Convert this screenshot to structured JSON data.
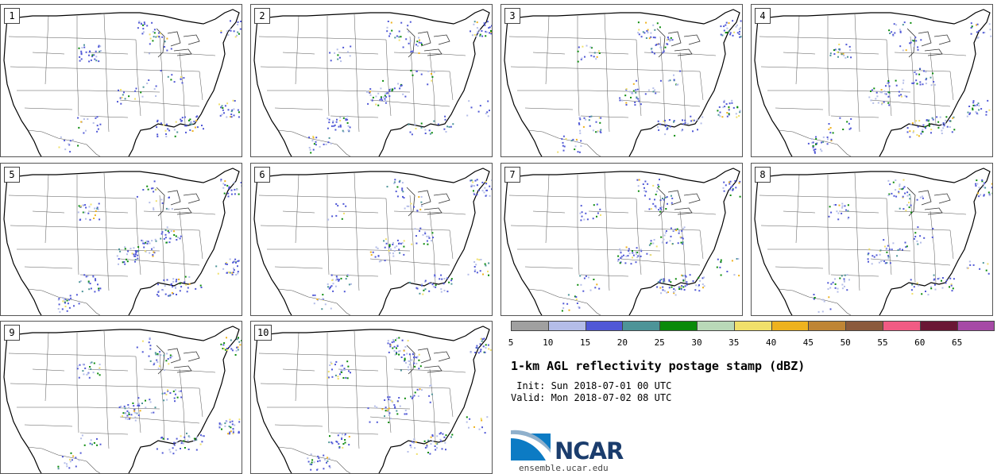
{
  "panels": [
    {
      "id": 1,
      "label": "1"
    },
    {
      "id": 2,
      "label": "2"
    },
    {
      "id": 3,
      "label": "3"
    },
    {
      "id": 4,
      "label": "4"
    },
    {
      "id": 5,
      "label": "5"
    },
    {
      "id": 6,
      "label": "6"
    },
    {
      "id": 7,
      "label": "7"
    },
    {
      "id": 8,
      "label": "8"
    },
    {
      "id": 9,
      "label": "9"
    },
    {
      "id": 10,
      "label": "10"
    }
  ],
  "colorbar": {
    "ticks": [
      "5",
      "10",
      "15",
      "20",
      "25",
      "30",
      "35",
      "40",
      "45",
      "50",
      "55",
      "60",
      "65"
    ],
    "colors": [
      "#a0a0a0",
      "#b4bde8",
      "#5058d6",
      "#4d9498",
      "#0a8a0a",
      "#b9d9b8",
      "#f0e06a",
      "#eeb21e",
      "#bf8535",
      "#8b5a3c",
      "#f15b84",
      "#6a1735",
      "#a64aa6"
    ]
  },
  "title": "1-km AGL reflectivity postage stamp (dBZ)",
  "init": " Init: Sun 2018-07-01 00 UTC",
  "valid": "Valid: Mon 2018-07-02 08 UTC",
  "logo": {
    "text": "NCAR",
    "url": "ensemble.ucar.edu"
  }
}
